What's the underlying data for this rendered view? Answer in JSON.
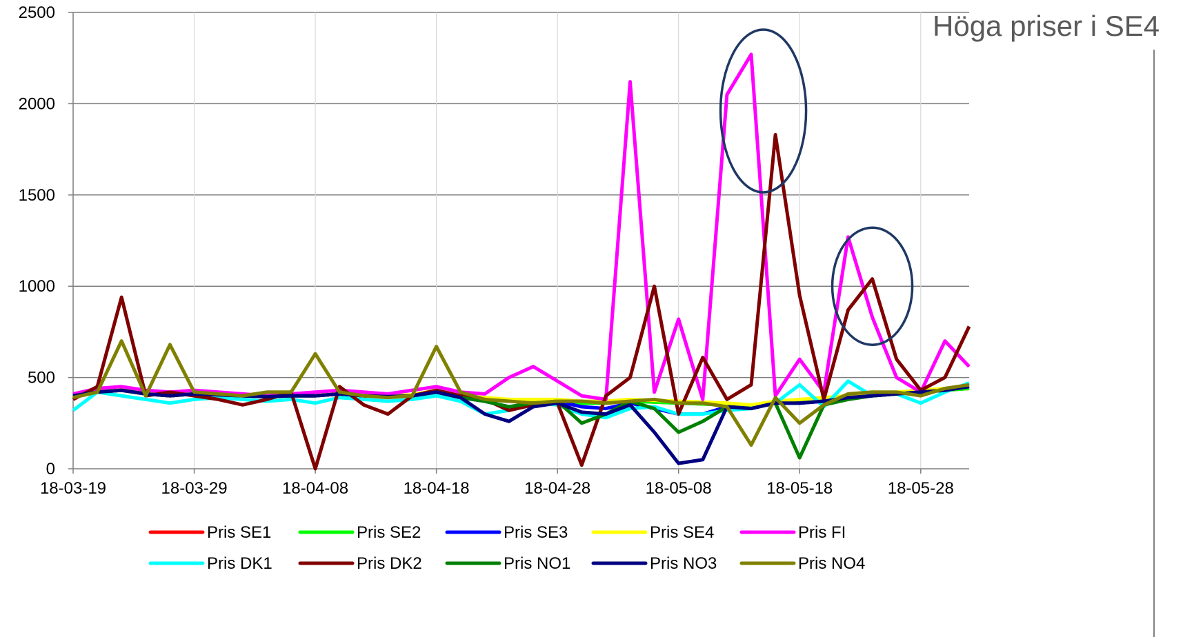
{
  "page": {
    "side_title": "Höga priser i SE4",
    "rule_color": "#808080"
  },
  "chart_data": {
    "type": "line",
    "title": "",
    "xlabel": "",
    "ylabel": "",
    "ylim": [
      0,
      2500
    ],
    "yticks": [
      "0",
      "500",
      "1000",
      "1500",
      "2000",
      "2500"
    ],
    "xlim": [
      "18-03-19",
      "18-06-01"
    ],
    "xticks": [
      "18-03-19",
      "18-03-29",
      "18-04-08",
      "18-04-18",
      "18-04-28",
      "18-05-08",
      "18-05-18",
      "18-05-28"
    ],
    "grid": true,
    "legend_position": "bottom",
    "x": [
      "18-03-19",
      "18-03-21",
      "18-03-23",
      "18-03-25",
      "18-03-27",
      "18-03-29",
      "18-03-31",
      "18-04-02",
      "18-04-04",
      "18-04-06",
      "18-04-08",
      "18-04-10",
      "18-04-12",
      "18-04-14",
      "18-04-16",
      "18-04-18",
      "18-04-20",
      "18-04-22",
      "18-04-24",
      "18-04-26",
      "18-04-28",
      "18-04-30",
      "18-05-02",
      "18-05-04",
      "18-05-06",
      "18-05-08",
      "18-05-10",
      "18-05-12",
      "18-05-14",
      "18-05-16",
      "18-05-18",
      "18-05-20",
      "18-05-22",
      "18-05-24",
      "18-05-26",
      "18-05-28",
      "18-05-30",
      "18-06-01"
    ],
    "series": [
      {
        "name": "Pris SE1",
        "color": "#ff0000",
        "values": [
          400,
          420,
          430,
          410,
          400,
          410,
          405,
          400,
          395,
          400,
          400,
          410,
          400,
          395,
          400,
          420,
          390,
          380,
          370,
          370,
          370,
          360,
          360,
          370,
          365,
          360,
          355,
          350,
          340,
          360,
          370,
          380,
          390,
          400,
          410,
          420,
          430,
          440
        ]
      },
      {
        "name": "Pris SE2",
        "color": "#00ff00",
        "values": [
          400,
          420,
          430,
          410,
          400,
          410,
          405,
          400,
          395,
          400,
          400,
          410,
          400,
          395,
          400,
          420,
          390,
          380,
          370,
          370,
          370,
          360,
          360,
          370,
          365,
          360,
          355,
          350,
          340,
          360,
          370,
          380,
          390,
          400,
          410,
          420,
          430,
          440
        ]
      },
      {
        "name": "Pris SE3",
        "color": "#0000ff",
        "values": [
          405,
          425,
          430,
          415,
          405,
          410,
          405,
          400,
          395,
          400,
          400,
          410,
          400,
          395,
          400,
          420,
          390,
          370,
          340,
          360,
          370,
          340,
          330,
          360,
          330,
          300,
          300,
          340,
          330,
          360,
          360,
          370,
          390,
          400,
          410,
          420,
          440,
          450
        ]
      },
      {
        "name": "Pris SE4",
        "color": "#ffff00",
        "values": [
          410,
          430,
          440,
          420,
          410,
          415,
          410,
          405,
          400,
          405,
          405,
          415,
          405,
          400,
          405,
          430,
          400,
          390,
          380,
          380,
          380,
          370,
          370,
          380,
          375,
          370,
          365,
          360,
          350,
          370,
          380,
          390,
          400,
          410,
          420,
          430,
          440,
          450
        ]
      },
      {
        "name": "Pris FI",
        "color": "#ff00ff",
        "values": [
          410,
          440,
          450,
          430,
          420,
          430,
          420,
          410,
          400,
          410,
          420,
          430,
          420,
          410,
          430,
          450,
          420,
          410,
          500,
          560,
          480,
          400,
          380,
          2120,
          420,
          820,
          380,
          2050,
          2270,
          400,
          600,
          420,
          1270,
          830,
          500,
          420,
          700,
          560
        ]
      },
      {
        "name": "Pris DK1",
        "color": "#00ffff",
        "values": [
          320,
          420,
          400,
          380,
          360,
          380,
          390,
          380,
          370,
          380,
          360,
          390,
          380,
          370,
          380,
          400,
          370,
          300,
          320,
          360,
          350,
          300,
          280,
          330,
          340,
          300,
          300,
          320,
          330,
          360,
          460,
          340,
          480,
          400,
          410,
          360,
          420,
          470
        ]
      },
      {
        "name": "Pris DK2",
        "color": "#800000",
        "values": [
          380,
          450,
          940,
          400,
          420,
          400,
          380,
          350,
          380,
          420,
          0,
          450,
          350,
          300,
          400,
          430,
          400,
          380,
          320,
          350,
          360,
          20,
          400,
          500,
          1000,
          300,
          610,
          380,
          460,
          1830,
          950,
          380,
          870,
          1040,
          600,
          430,
          500,
          780
        ]
      },
      {
        "name": "Pris NO1",
        "color": "#008000",
        "values": [
          400,
          420,
          430,
          410,
          400,
          410,
          405,
          400,
          395,
          400,
          400,
          410,
          400,
          395,
          400,
          420,
          390,
          370,
          340,
          360,
          370,
          250,
          300,
          370,
          330,
          200,
          260,
          340,
          330,
          360,
          60,
          350,
          380,
          400,
          410,
          420,
          430,
          450
        ]
      },
      {
        "name": "Pris NO3",
        "color": "#000080",
        "values": [
          400,
          420,
          430,
          410,
          400,
          410,
          405,
          400,
          395,
          400,
          400,
          410,
          400,
          395,
          400,
          420,
          390,
          300,
          260,
          340,
          360,
          310,
          300,
          350,
          200,
          30,
          50,
          340,
          330,
          360,
          360,
          370,
          390,
          400,
          410,
          420,
          430,
          450
        ]
      },
      {
        "name": "Pris NO4",
        "color": "#808000",
        "values": [
          390,
          420,
          700,
          400,
          680,
          420,
          410,
          400,
          420,
          420,
          630,
          420,
          400,
          390,
          400,
          670,
          420,
          380,
          370,
          360,
          370,
          370,
          360,
          370,
          380,
          360,
          360,
          340,
          130,
          390,
          250,
          350,
          410,
          420,
          420,
          400,
          440,
          460
        ]
      }
    ],
    "annotations": [
      {
        "type": "ellipse",
        "center_x": "18-05-15",
        "center_y": 1960,
        "color": "#1f3864"
      },
      {
        "type": "ellipse",
        "center_x": "18-05-24",
        "center_y": 1000,
        "color": "#1f3864"
      }
    ]
  }
}
